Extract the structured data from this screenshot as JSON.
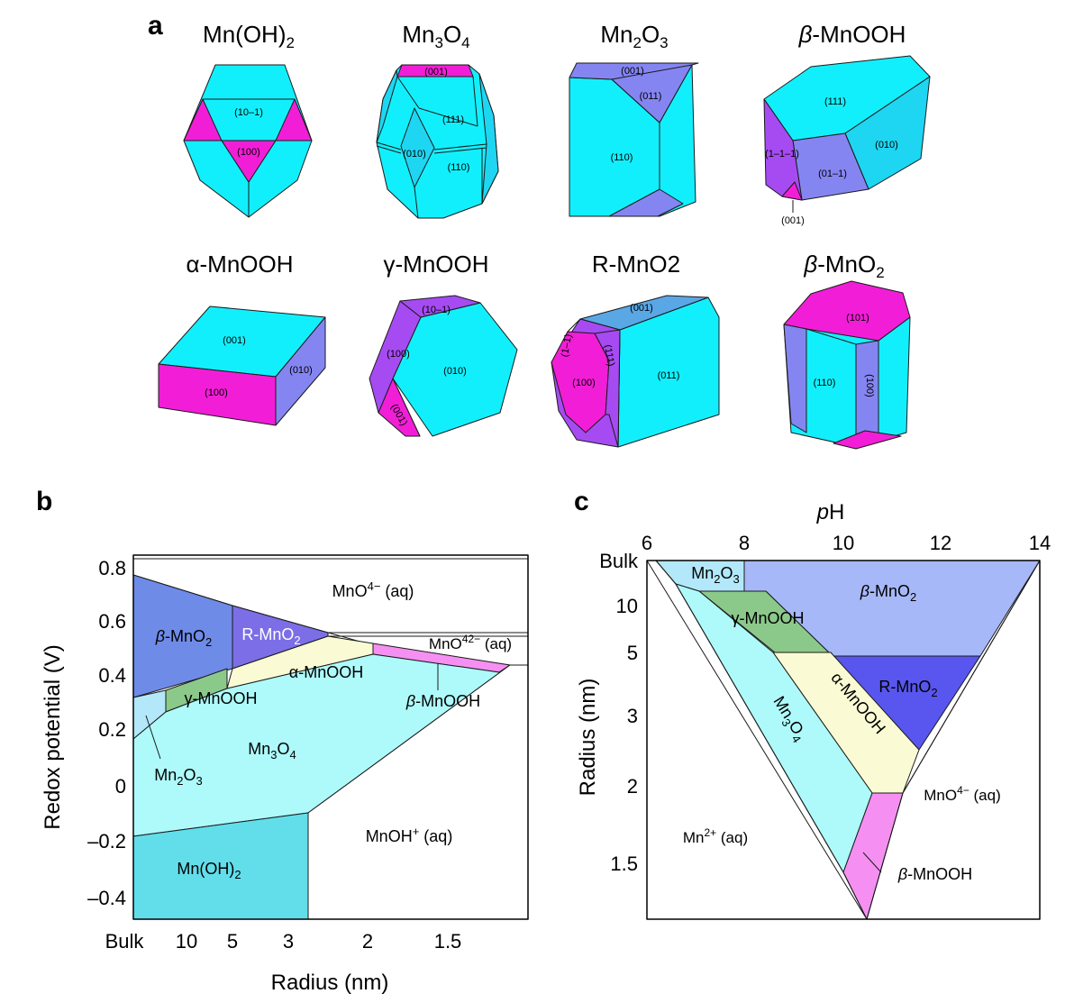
{
  "panels": {
    "a": "a",
    "b": "b",
    "c": "c"
  },
  "colors": {
    "cyan": "#12EFFC",
    "cyan_side": "#1ED6F2",
    "magenta": "#F21ED7",
    "violet": "#A64BF2",
    "periwinkle": "#8585F2",
    "lightblue_face": "#5AA7E6",
    "mnoh2": "#62DEEB",
    "mn3o4": "#AEFAFB",
    "mn2o3": "#B2E8F9",
    "beta_mno2": "#6F8BE8",
    "beta_mno2_c": "#A7B8F8",
    "r_mno2": "#7B6EE6",
    "r_mno2_c": "#5856EE",
    "gamma_mnooh": "#8BC98A",
    "alpha_mnooh": "#FAFBD4",
    "beta_mnooh": "#F590F2"
  },
  "crystals": [
    {
      "title": "Mn(OH)2",
      "facets": [
        "(10–1)",
        "(100)"
      ]
    },
    {
      "title": "Mn3O4",
      "facets": [
        "(001)",
        "(111)",
        "(010)",
        "(110)"
      ]
    },
    {
      "title": "Mn2O3",
      "facets": [
        "(001)",
        "(011)",
        "(110)"
      ]
    },
    {
      "title": "β-MnOOH",
      "facets": [
        "(111)",
        "(010)",
        "(1–1–1)",
        "(01–1)",
        "(001)"
      ]
    },
    {
      "title": "α-MnOOH",
      "facets": [
        "(001)",
        "(010)",
        "(100)"
      ]
    },
    {
      "title": "γ-MnOOH",
      "facets": [
        "(10–1)",
        "(100)",
        "(010)",
        "(001)"
      ]
    },
    {
      "title": "R-MnO2",
      "facets": [
        "(001)",
        "(1–1)",
        "(111)",
        "(011)",
        "(100)"
      ]
    },
    {
      "title": "β-MnO2",
      "facets": [
        "(101)",
        "(110)",
        "(100)"
      ]
    }
  ],
  "chart_data": [
    {
      "type": "area",
      "panel": "b",
      "xlabel": "Radius (nm)",
      "ylabel": "Redox potential (V)",
      "x_ticks": [
        "Bulk",
        "10",
        "5",
        "3",
        "2",
        "1.5"
      ],
      "y_ticks": [
        "0.8",
        "0.6",
        "0.4",
        "0.2",
        "0",
        "–0.2",
        "–0.4"
      ],
      "ylim": [
        -0.47,
        0.85
      ],
      "regions": [
        {
          "name": "MnO4− (aq)"
        },
        {
          "name": "MnO42− (aq)"
        },
        {
          "name": "β-MnO2"
        },
        {
          "name": "R-MnO2"
        },
        {
          "name": "α-MnOOH"
        },
        {
          "name": "γ-MnOOH"
        },
        {
          "name": "β-MnOOH"
        },
        {
          "name": "Mn2O3"
        },
        {
          "name": "Mn3O4"
        },
        {
          "name": "MnOH+ (aq)"
        },
        {
          "name": "Mn(OH)2"
        }
      ]
    },
    {
      "type": "area",
      "panel": "c",
      "xlabel": "pH",
      "ylabel": "Radius (nm)",
      "x_ticks": [
        "6",
        "8",
        "10",
        "12",
        "14"
      ],
      "y_ticks": [
        "Bulk",
        "10",
        "5",
        "3",
        "2",
        "1.5"
      ],
      "xlim": [
        6,
        14
      ],
      "regions": [
        {
          "name": "Mn2O3"
        },
        {
          "name": "β-MnO2"
        },
        {
          "name": "γ-MnOOH"
        },
        {
          "name": "R-MnO2"
        },
        {
          "name": "Mn3O4"
        },
        {
          "name": "α-MnOOH"
        },
        {
          "name": "MnO4− (aq)"
        },
        {
          "name": "Mn2+ (aq)"
        },
        {
          "name": "β-MnOOH"
        }
      ]
    }
  ]
}
